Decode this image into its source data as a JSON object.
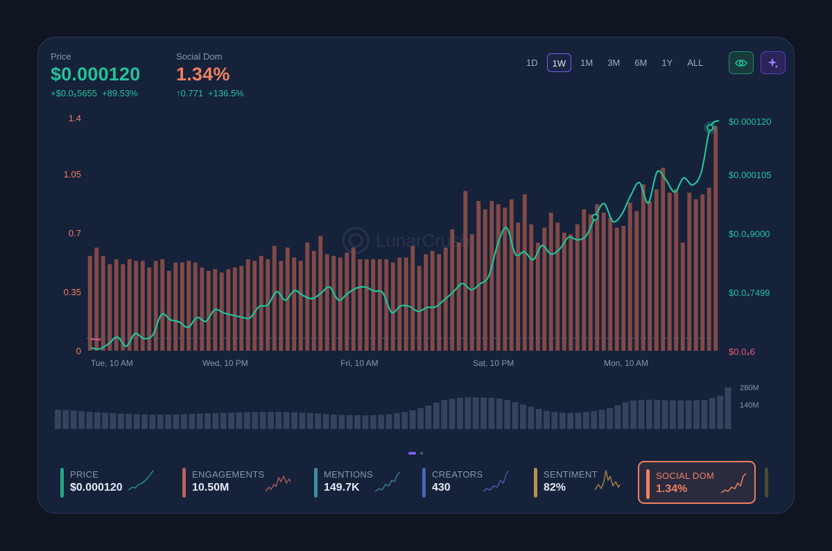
{
  "header": {
    "price": {
      "label": "Price",
      "value": "$0.000120",
      "change_abs": "+$0.0₅5655",
      "change_pct": "+89.53%"
    },
    "social_dom": {
      "label": "Social Dom",
      "value": "1.34%",
      "change_abs": "↑0.771",
      "change_pct": "+136.5%"
    }
  },
  "ranges": [
    {
      "label": "1D",
      "active": false
    },
    {
      "label": "1W",
      "active": true
    },
    {
      "label": "1M",
      "active": false
    },
    {
      "label": "3M",
      "active": false
    },
    {
      "label": "6M",
      "active": false
    },
    {
      "label": "1Y",
      "active": false
    },
    {
      "label": "ALL",
      "active": false
    }
  ],
  "icons": {
    "view": "eye-icon",
    "ai": "sparkle-icon"
  },
  "watermark": "LunarCrush",
  "colors": {
    "bars": "#8c4e48",
    "line": "#22c39a",
    "left_axis": "#f0805f",
    "right_axis": "#22c39a",
    "baseline_axis": "#f05a7e",
    "volume": "#36435d"
  },
  "chart_data": {
    "type": "bar+line",
    "x_ticks": [
      "Tue, 10 AM",
      "Wed, 10 PM",
      "Fri, 10 AM",
      "Sat, 10 PM",
      "Mon, 10 AM"
    ],
    "left_axis": {
      "ticks": [
        "1.4",
        "1.05",
        "0.7",
        "0.35",
        "0"
      ],
      "ylim": [
        0,
        1.4
      ]
    },
    "right_axis": {
      "ticks": [
        "$0.000120",
        "$0.000105",
        "$0.0₄9000",
        "$0.0₄7499",
        "$0.0₄6"
      ]
    },
    "volume_axis": {
      "ticks": [
        "280M",
        "140M"
      ]
    },
    "series": [
      {
        "name": "Social Dom",
        "values": [
          0.57,
          0.62,
          0.57,
          0.52,
          0.55,
          0.52,
          0.55,
          0.54,
          0.54,
          0.5,
          0.54,
          0.55,
          0.48,
          0.53,
          0.53,
          0.54,
          0.53,
          0.5,
          0.48,
          0.49,
          0.47,
          0.49,
          0.5,
          0.51,
          0.55,
          0.54,
          0.57,
          0.55,
          0.63,
          0.54,
          0.62,
          0.56,
          0.54,
          0.65,
          0.6,
          0.69,
          0.58,
          0.57,
          0.56,
          0.59,
          0.62,
          0.55,
          0.55,
          0.55,
          0.55,
          0.55,
          0.53,
          0.56,
          0.56,
          0.63,
          0.51,
          0.58,
          0.6,
          0.58,
          0.62,
          0.73,
          0.65,
          0.96,
          0.7,
          0.9,
          0.85,
          0.9,
          0.88,
          0.86,
          0.91,
          0.77,
          0.94,
          0.76,
          0.65,
          0.74,
          0.83,
          0.77,
          0.71,
          0.7,
          0.76,
          0.85,
          0.82,
          0.88,
          0.83,
          0.8,
          0.74,
          0.75,
          0.89,
          0.84,
          1.0,
          0.9,
          0.97,
          1.1,
          0.95,
          0.97,
          0.65,
          0.95,
          0.91,
          0.94,
          0.98,
          1.35
        ]
      },
      {
        "name": "Price",
        "values": [
          6.04e-05,
          6.01e-05,
          6.14e-05,
          6.32e-05,
          6.08e-05,
          6.41e-05,
          6.28e-05,
          6.37e-05,
          6.91e-05,
          6.77e-05,
          6.71e-05,
          6.57e-05,
          6.83e-05,
          6.73e-05,
          7.03e-05,
          6.95e-05,
          6.89e-05,
          6.84e-05,
          6.82e-05,
          7.11e-05,
          7.16e-05,
          7.5e-05,
          7.28e-05,
          7.53e-05,
          7.4e-05,
          7.32e-05,
          7.46e-05,
          7.62e-05,
          7.28e-05,
          7.45e-05,
          7.59e-05,
          7.62e-05,
          7.52e-05,
          7.47e-05,
          6.96e-05,
          7.13e-05,
          7.12e-05,
          6.99e-05,
          7.09e-05,
          7.11e-05,
          7.3e-05,
          7.5e-05,
          7.71e-05,
          7.55e-05,
          7.7e-05,
          7.91e-05,
          8.72e-05,
          9.13e-05,
          8.45e-05,
          8.52e-05,
          8.32e-05,
          8.68e-05,
          8.46e-05,
          8.59e-05,
          8.89e-05,
          8.82e-05,
          8.93e-05,
          9.4e-05,
          9.75e-05,
          9.29e-05,
          9.47e-05,
          9.94e-05,
          0.0001028,
          9.76e-05,
          0.0001056,
          0.0001035,
          0.0001004,
          0.000104,
          0.0001022,
          0.0001055,
          0.000118,
          0.00012
        ]
      },
      {
        "name": "Volume",
        "values": [
          130,
          128,
          125,
          120,
          116,
          112,
          110,
          107,
          104,
          102,
          100,
          98,
          97,
          97,
          97,
          98,
          100,
          102,
          104,
          105,
          106,
          108,
          110,
          112,
          113,
          114,
          115,
          116,
          115,
          114,
          112,
          110,
          107,
          104,
          100,
          97,
          95,
          94,
          93,
          92,
          93,
          96,
          100,
          107,
          114,
          126,
          140,
          158,
          178,
          195,
          203,
          210,
          214,
          213,
          212,
          210,
          205,
          195,
          180,
          165,
          150,
          135,
          122,
          115,
          110,
          108,
          110,
          115,
          122,
          130,
          140,
          160,
          180,
          192,
          196,
          198,
          196,
          194,
          193,
          192,
          192,
          194,
          196,
          210,
          225,
          280
        ]
      }
    ],
    "grid": false
  },
  "metrics": [
    {
      "label": "PRICE",
      "value": "$0.000120",
      "color": "#22a783",
      "selected": false
    },
    {
      "label": "ENGAGEMENTS",
      "value": "10.50M",
      "color": "#b96656",
      "selected": false
    },
    {
      "label": "MENTIONS",
      "value": "149.7K",
      "color": "#3e8ea4",
      "selected": false
    },
    {
      "label": "CREATORS",
      "value": "430",
      "color": "#4a66b8",
      "selected": false
    },
    {
      "label": "SENTIMENT",
      "value": "82%",
      "color": "#b59447",
      "selected": false
    },
    {
      "label": "SOCIAL DOM",
      "value": "1.34%",
      "color": "#f0805f",
      "selected": true
    }
  ]
}
